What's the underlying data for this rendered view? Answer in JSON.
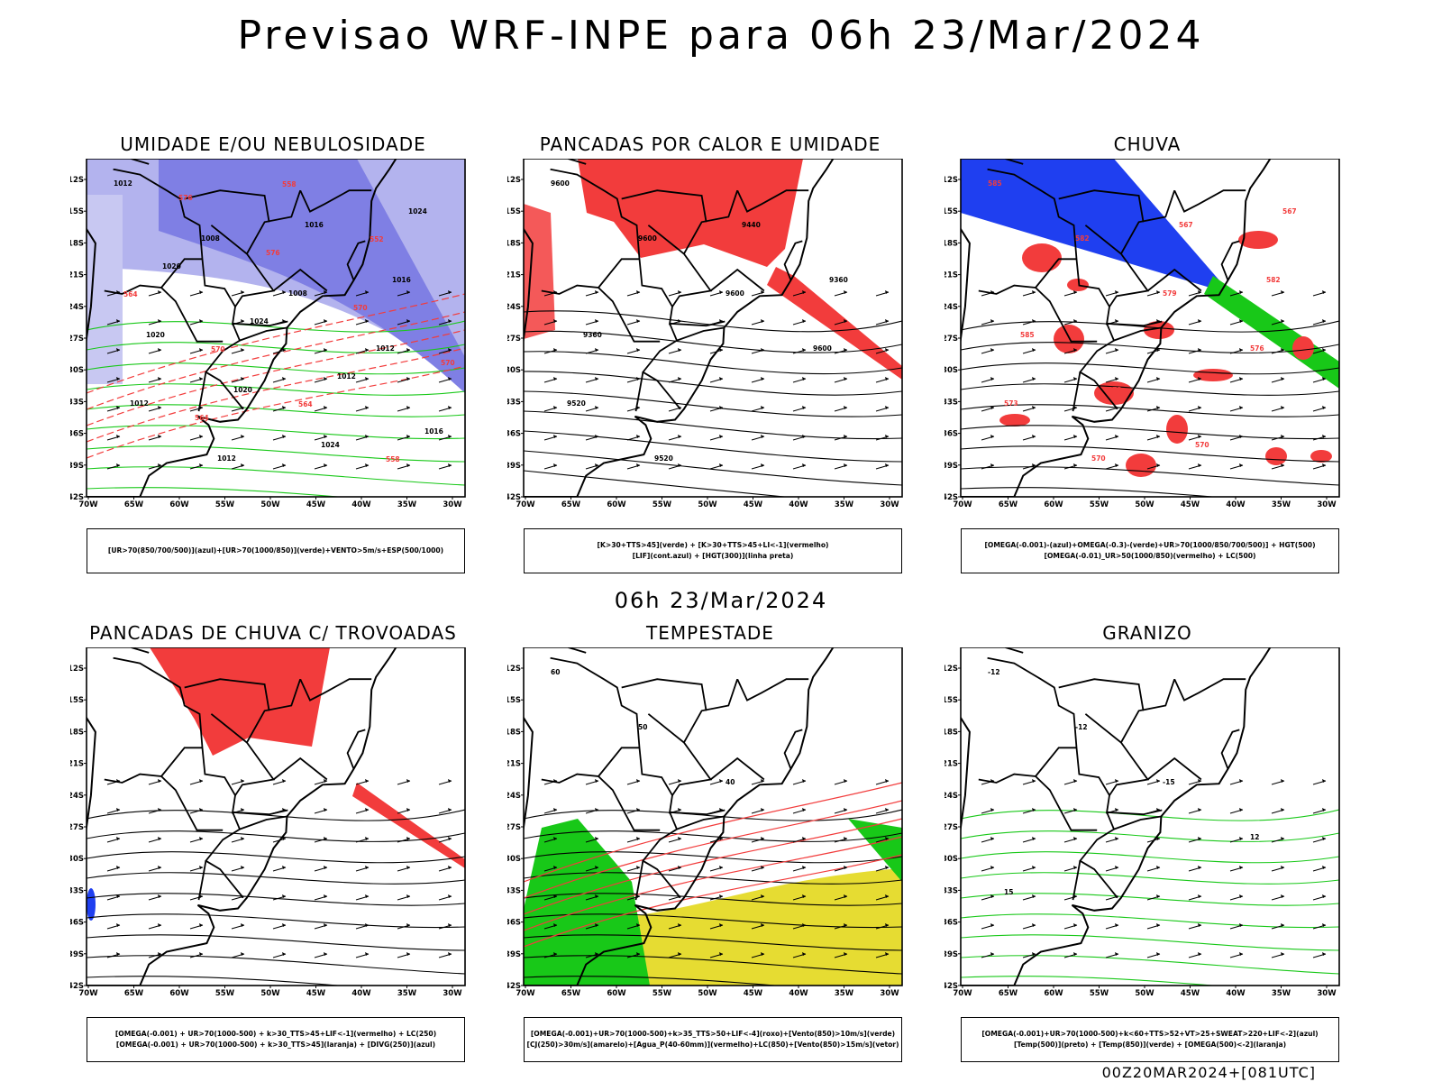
{
  "title": "Previsao WRF-INPE  para 06h 23/Mar/2024",
  "subtitle": "06h 23/Mar/2024",
  "footer": "00Z20MAR2024+[081UTC]",
  "axes": {
    "lat_labels": [
      "12S",
      "15S",
      "18S",
      "21S",
      "24S",
      "27S",
      "30S",
      "33S",
      "36S",
      "39S",
      "42S"
    ],
    "lon_labels": [
      "70W",
      "65W",
      "60W",
      "55W",
      "50W",
      "45W",
      "40W",
      "35W",
      "30W"
    ]
  },
  "colors": {
    "blue": "#1f3ff0",
    "lavender": "#9a9ae6",
    "green": "#18c818",
    "red": "#f23c3c",
    "orange": "#ff7a1a",
    "yellow": "#e6dc32",
    "teal": "#2d6f64",
    "black": "#000000"
  },
  "panels": [
    {
      "title": "UMIDADE E/OU NEBULOSIDADE",
      "legend": [
        "[UR>70(850/700/500)](azul)+[UR>70(1000/850)](verde)+VENTO>5m/s+ESP(500/1000)"
      ],
      "contour_labels": [
        "1012",
        "1008",
        "1008",
        "1012",
        "1012",
        "1012",
        "1016",
        "1016",
        "1020",
        "1020",
        "1024",
        "1024",
        "1020",
        "1024",
        "1012",
        "1016",
        "576",
        "576",
        "570",
        "570",
        "564",
        "558",
        "552",
        "564",
        "570",
        "564",
        "558"
      ]
    },
    {
      "title": "PANCADAS POR CALOR E UMIDADE",
      "legend": [
        "[K>30+TTS>45](verde) + [K>30+TTS>45+LI<-1](vermelho)",
        "[LIF](cont.azul) + [HGT(300)](linha preta)"
      ],
      "contour_labels": [
        "9600",
        "9600",
        "9600",
        "9600",
        "9520",
        "9520",
        "9440",
        "9360",
        "9360"
      ]
    },
    {
      "title": "CHUVA",
      "legend": [
        "[OMEGA(-0.001)-(azul)+OMEGA(-0.3)-(verde)+UR>70(1000/850/700/500)] + HGT(500)",
        "[OMEGA(-0.01)_UR>50(1000/850)(vermelho) + LC(500)"
      ],
      "contour_labels": [
        "585",
        "582",
        "579",
        "576",
        "573",
        "570",
        "567",
        "582",
        "585",
        "573",
        "570",
        "567"
      ]
    },
    {
      "title": "PANCADAS DE CHUVA C/ TROVOADAS",
      "legend": [
        "[OMEGA(-0.001) + UR>70(1000-500) + k>30_TTS>45+LIF<-1](vermelho) + LC(250)",
        "[OMEGA(-0.001) + UR>70(1000-500) + k>30_TTS>45](laranja) + [DIVG(250)](azul)"
      ],
      "contour_labels": []
    },
    {
      "title": "TEMPESTADE",
      "legend": [
        "[OMEGA(-0.001)+UR>70(1000-500)+k>35_TTS>50+LIF<-4](roxo)+[Vento(850)>10m/s](verde)",
        "[CJ(250)>30m/s](amarelo)+[Agua_P(40-60mm)](vermelho)+LC(850)+[Vento(850)>15m/s](vetor)"
      ],
      "contour_labels": [
        "60",
        "50",
        "40"
      ]
    },
    {
      "title": "GRANIZO",
      "legend": [
        "[OMEGA(-0.001)+UR>70(1000-500)+k<60+TTS>52+VT>25+SWEAT>220+LIF<-2](azul)",
        "[Temp(500)](preto) + [Temp(850)](verde) + [OMEGA(500)<-2](laranja)"
      ],
      "contour_labels": [
        "-12",
        "-12",
        "-15",
        "12",
        "15"
      ]
    }
  ]
}
